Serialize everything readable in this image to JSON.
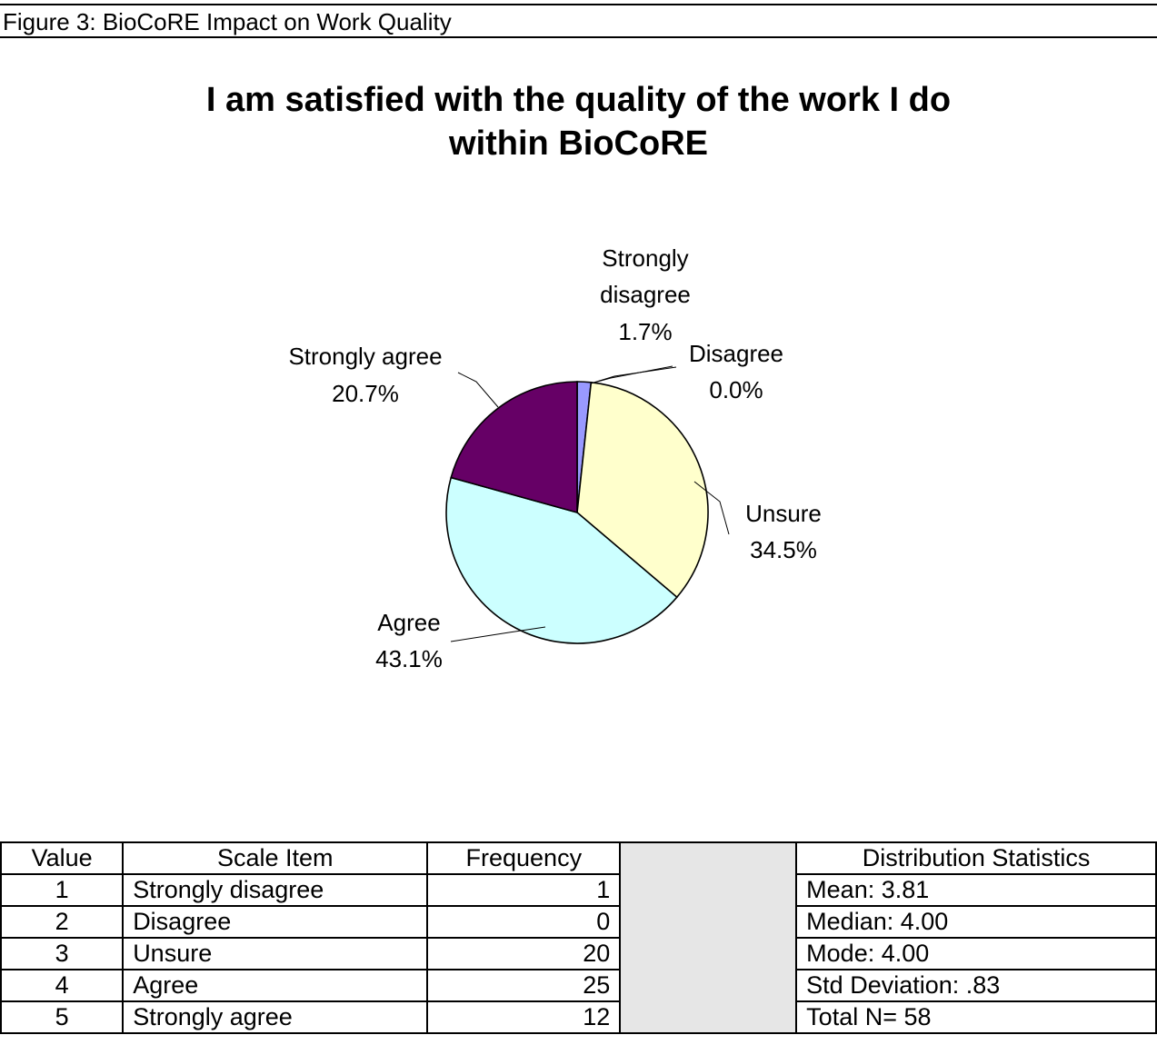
{
  "figure_caption": "Figure 3:  BioCoRE Impact on Work Quality",
  "chart_data": {
    "type": "pie",
    "title_lines": [
      "I am satisfied with the quality of the work I do",
      "within BioCoRE"
    ],
    "slices": [
      {
        "label": "Strongly disagree",
        "value": 1.7,
        "pct_label": "1.7%",
        "color": "#9999ff"
      },
      {
        "label": "Disagree",
        "value": 0.0,
        "pct_label": "0.0%",
        "color": "#993366"
      },
      {
        "label": "Unsure",
        "value": 34.5,
        "pct_label": "34.5%",
        "color": "#ffffcc"
      },
      {
        "label": "Agree",
        "value": 43.1,
        "pct_label": "43.1%",
        "color": "#ccffff"
      },
      {
        "label": "Strongly agree",
        "value": 20.7,
        "pct_label": "20.7%",
        "color": "#660066"
      }
    ]
  },
  "table": {
    "headers": {
      "value": "Value",
      "item": "Scale Item",
      "frequency": "Frequency",
      "distribution": "Distribution Statistics"
    },
    "rows": [
      {
        "value": "1",
        "item": "Strongly disagree",
        "frequency": "1",
        "stat": "Mean: 3.81"
      },
      {
        "value": "2",
        "item": "Disagree",
        "frequency": "0",
        "stat": "Median: 4.00"
      },
      {
        "value": "3",
        "item": "Unsure",
        "frequency": "20",
        "stat": "Mode: 4.00"
      },
      {
        "value": "4",
        "item": "Agree",
        "frequency": "25",
        "stat": "Std Deviation: .83"
      },
      {
        "value": "5",
        "item": "Strongly agree",
        "frequency": "12",
        "stat": "Total N= 58"
      }
    ]
  }
}
